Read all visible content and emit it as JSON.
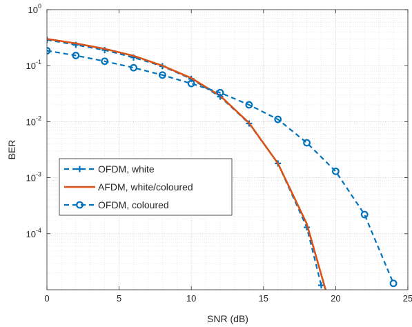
{
  "chart_data": {
    "type": "line",
    "xlabel": "SNR (dB)",
    "ylabel": "BER",
    "xlim": [
      0,
      25
    ],
    "ylim": [
      1e-05,
      1
    ],
    "yscale": "log",
    "grid": true,
    "minor_grid": true,
    "legend_position": "bottom-left",
    "x_ticks": [
      {
        "value": 0,
        "label": "0"
      },
      {
        "value": 5,
        "label": "5"
      },
      {
        "value": 10,
        "label": "10"
      },
      {
        "value": 15,
        "label": "15"
      },
      {
        "value": 20,
        "label": "20"
      },
      {
        "value": 25,
        "label": "25"
      }
    ],
    "y_ticks": [
      {
        "value": 1,
        "base": "10",
        "exp": "0"
      },
      {
        "value": 0.1,
        "base": "10",
        "exp": "-1"
      },
      {
        "value": 0.01,
        "base": "10",
        "exp": "-2"
      },
      {
        "value": 0.001,
        "base": "10",
        "exp": "-3"
      },
      {
        "value": 0.0001,
        "base": "10",
        "exp": "-4"
      }
    ],
    "series": [
      {
        "name": "OFDM, white",
        "color": "#0072BD",
        "line_style": "dashed",
        "marker": "plus",
        "x": [
          0,
          2,
          4,
          6,
          8,
          10,
          12,
          14,
          16,
          18,
          19
        ],
        "y": [
          0.29,
          0.235,
          0.19,
          0.14,
          0.098,
          0.058,
          0.028,
          0.0093,
          0.0018,
          0.00013,
          1.2e-05
        ]
      },
      {
        "name": "AFDM, white/coloured",
        "color": "#D95319",
        "line_style": "solid",
        "marker": "none",
        "x": [
          0,
          2,
          4,
          6,
          8,
          10,
          12,
          14,
          16,
          18,
          19.3
        ],
        "y": [
          0.3,
          0.25,
          0.2,
          0.15,
          0.1,
          0.06,
          0.029,
          0.0095,
          0.0018,
          0.00015,
          1e-05
        ]
      },
      {
        "name": "OFDM, coloured",
        "color": "#0072BD",
        "line_style": "dashed",
        "marker": "circle",
        "x": [
          0,
          2,
          4,
          6,
          8,
          10,
          12,
          14,
          16,
          18,
          20,
          22,
          24
        ],
        "y": [
          0.185,
          0.152,
          0.12,
          0.092,
          0.068,
          0.048,
          0.033,
          0.02,
          0.011,
          0.0042,
          0.0013,
          0.00022,
          1.3e-05
        ]
      }
    ]
  }
}
